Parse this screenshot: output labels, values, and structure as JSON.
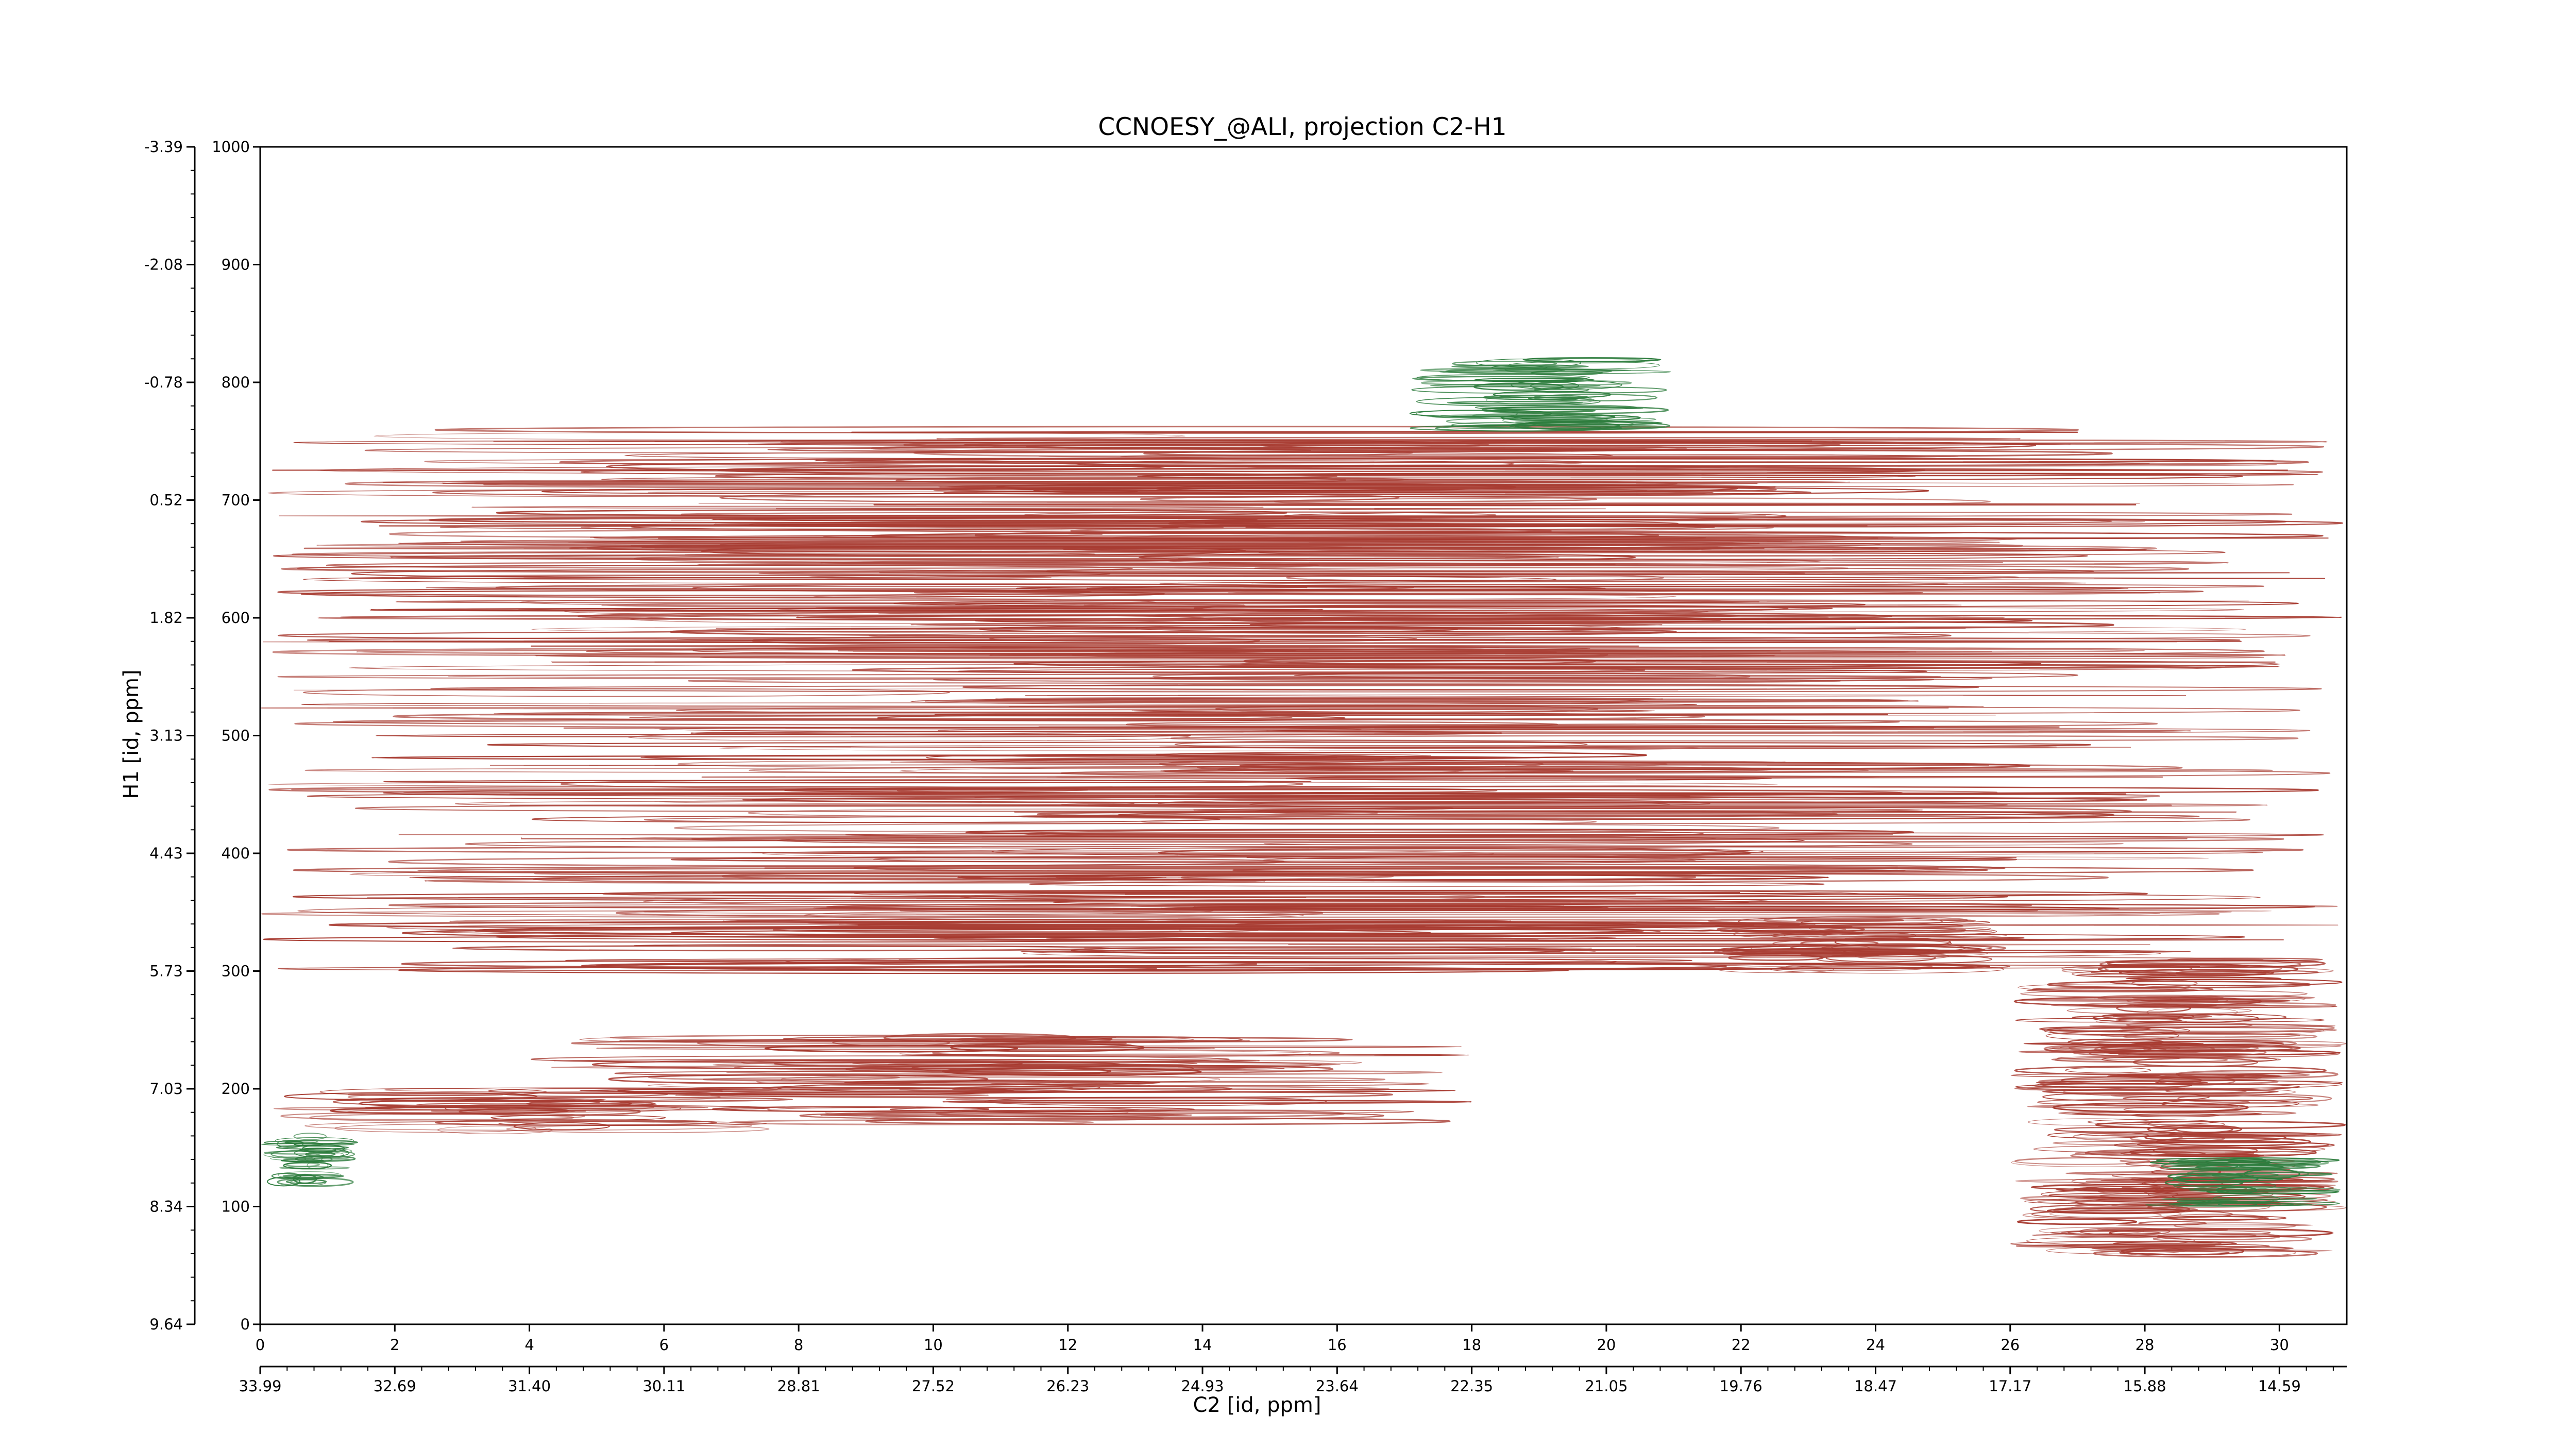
{
  "chart_data": {
    "type": "contour",
    "title": "CCNOESY_@ALI, projection C2-H1",
    "xlabel": "C2 [id, ppm]",
    "ylabel": "H1 [id, ppm]",
    "x_index_range": [
      0,
      31
    ],
    "y_index_range": [
      0,
      1000
    ],
    "x_ticks": [
      0,
      2,
      4,
      6,
      8,
      10,
      12,
      14,
      16,
      18,
      20,
      22,
      24,
      26,
      28,
      30
    ],
    "x_ppm_labels": [
      "33.99",
      "32.69",
      "31.40",
      "30.11",
      "28.81",
      "27.52",
      "26.23",
      "24.93",
      "23.64",
      "22.35",
      "21.05",
      "19.76",
      "18.47",
      "17.17",
      "15.88",
      "14.59"
    ],
    "y_ticks": [
      0,
      100,
      200,
      300,
      400,
      500,
      600,
      700,
      800,
      900,
      1000
    ],
    "y_ppm_labels": [
      "9.64",
      "8.34",
      "7.03",
      "5.73",
      "4.43",
      "3.13",
      "1.82",
      "0.52",
      "-0.78",
      "-2.08",
      "-3.39"
    ],
    "series": [
      {
        "sign": "positive",
        "color": "#a83c32",
        "bands": [
          {
            "x": [
              0,
              31
            ],
            "y": [
              300,
              760
            ]
          },
          {
            "x": [
              4,
              18
            ],
            "y": [
              170,
              245
            ]
          },
          {
            "x": [
              0,
              8
            ],
            "y": [
              165,
              200
            ]
          },
          {
            "x": [
              26,
              31
            ],
            "y": [
              60,
              310
            ]
          },
          {
            "x": [
              21.5,
              26
            ],
            "y": [
              300,
              345
            ]
          }
        ]
      },
      {
        "sign": "negative",
        "color": "#2e7d3e",
        "bands": [
          {
            "x": [
              17,
              21
            ],
            "y": [
              760,
              820
            ]
          },
          {
            "x": [
              0,
              1.5
            ],
            "y": [
              120,
              160
            ]
          },
          {
            "x": [
              28,
              31
            ],
            "y": [
              100,
              140
            ]
          }
        ]
      }
    ]
  }
}
